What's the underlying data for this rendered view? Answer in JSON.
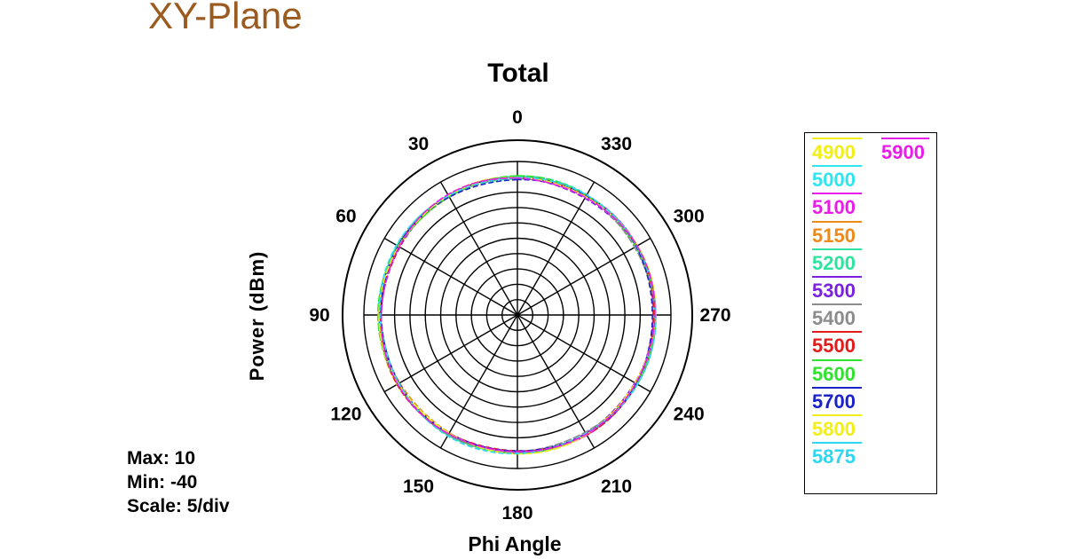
{
  "page_title": "XY-Plane",
  "chart_data": {
    "type": "polar-line",
    "title": "Total",
    "xlabel": "Phi Angle",
    "ylabel": "Power  (dBm)",
    "angle_ticks": [
      0,
      30,
      60,
      90,
      120,
      150,
      180,
      210,
      240,
      270,
      300,
      330
    ],
    "angle_direction": "counterclockwise",
    "r_range": [
      -40,
      10
    ],
    "r_scale_per_div": 5,
    "grid": true,
    "legend_position": "right",
    "stats": {
      "max": "Max: 10",
      "min": "Min: -40",
      "scale": "Scale: 5/div"
    },
    "series": [
      {
        "name": "4900",
        "color": "#f2ee1a",
        "r_dbm": 4.8
      },
      {
        "name": "5000",
        "color": "#2fe6ee",
        "r_dbm": 4.9
      },
      {
        "name": "5100",
        "color": "#e81de8",
        "r_dbm": 4.7
      },
      {
        "name": "5150",
        "color": "#ee8a1c",
        "r_dbm": 4.6
      },
      {
        "name": "5200",
        "color": "#2fe3a0",
        "r_dbm": 4.8
      },
      {
        "name": "5300",
        "color": "#7a22e0",
        "r_dbm": 4.5
      },
      {
        "name": "5400",
        "color": "#8c8c8c",
        "r_dbm": 4.6
      },
      {
        "name": "5500",
        "color": "#e21b1b",
        "r_dbm": 4.7
      },
      {
        "name": "5600",
        "color": "#2fe32f",
        "r_dbm": 4.9
      },
      {
        "name": "5700",
        "color": "#1b22c8",
        "r_dbm": 4.5
      },
      {
        "name": "5800",
        "color": "#f2ee1a",
        "r_dbm": 4.8
      },
      {
        "name": "5875",
        "color": "#2fd6f2",
        "r_dbm": 5.0
      },
      {
        "name": "5900",
        "color": "#e81de8",
        "r_dbm": 4.7
      }
    ]
  }
}
